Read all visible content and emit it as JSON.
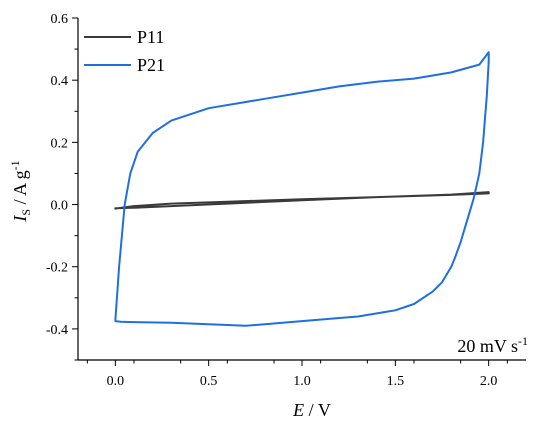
{
  "chart_data": {
    "type": "line",
    "title": "",
    "xlabel": {
      "main": "E",
      "unit": " / V"
    },
    "ylabel": {
      "main": "I",
      "sub": "S",
      "unit": " / A g",
      "sup": "-1"
    },
    "xlim": [
      -0.2,
      2.2
    ],
    "ylim": [
      -0.5,
      0.6
    ],
    "xticks": [
      0.0,
      0.5,
      1.0,
      1.5,
      2.0
    ],
    "xtick_labels": [
      "0.0",
      "0.5",
      "1.0",
      "1.5",
      "2.0"
    ],
    "yticks": [
      -0.4,
      -0.2,
      0.0,
      0.2,
      0.4,
      0.6
    ],
    "ytick_labels": [
      "-0.4",
      "-0.2",
      "0.0",
      "0.2",
      "0.4",
      "0.6"
    ],
    "grid": false,
    "legend_position": "top-left",
    "annotation": {
      "main": "20 mV s",
      "sup": "-1"
    },
    "series": [
      {
        "name": "P11",
        "color": "#3a3a3a",
        "x": [
          0.0,
          0.1,
          0.3,
          0.6,
          1.0,
          1.4,
          1.8,
          2.0,
          2.0,
          1.8,
          1.4,
          1.0,
          0.6,
          0.3,
          0.1,
          0.0,
          0.0
        ],
        "y": [
          -0.013,
          -0.005,
          0.003,
          0.009,
          0.017,
          0.024,
          0.031,
          0.036,
          0.04,
          0.032,
          0.024,
          0.014,
          0.003,
          -0.005,
          -0.01,
          -0.012,
          -0.013
        ]
      },
      {
        "name": "P21",
        "color": "#1f6fe0",
        "x": [
          0.0,
          0.02,
          0.05,
          0.08,
          0.12,
          0.2,
          0.3,
          0.5,
          0.8,
          1.0,
          1.2,
          1.4,
          1.6,
          1.8,
          1.95,
          2.0,
          2.0,
          1.99,
          1.97,
          1.95,
          1.92,
          1.9,
          1.87,
          1.85,
          1.82,
          1.8,
          1.75,
          1.7,
          1.6,
          1.5,
          1.3,
          1.2,
          1.0,
          0.8,
          0.7,
          0.5,
          0.3,
          0.1,
          0.03,
          0.0,
          0.0
        ],
        "y": [
          -0.375,
          -0.2,
          0.0,
          0.1,
          0.17,
          0.23,
          0.27,
          0.31,
          0.34,
          0.36,
          0.38,
          0.395,
          0.405,
          0.425,
          0.45,
          0.49,
          0.46,
          0.35,
          0.2,
          0.1,
          0.02,
          -0.02,
          -0.08,
          -0.12,
          -0.17,
          -0.2,
          -0.25,
          -0.28,
          -0.32,
          -0.34,
          -0.36,
          -0.365,
          -0.375,
          -0.385,
          -0.39,
          -0.385,
          -0.38,
          -0.378,
          -0.377,
          -0.375,
          -0.375
        ]
      }
    ]
  }
}
